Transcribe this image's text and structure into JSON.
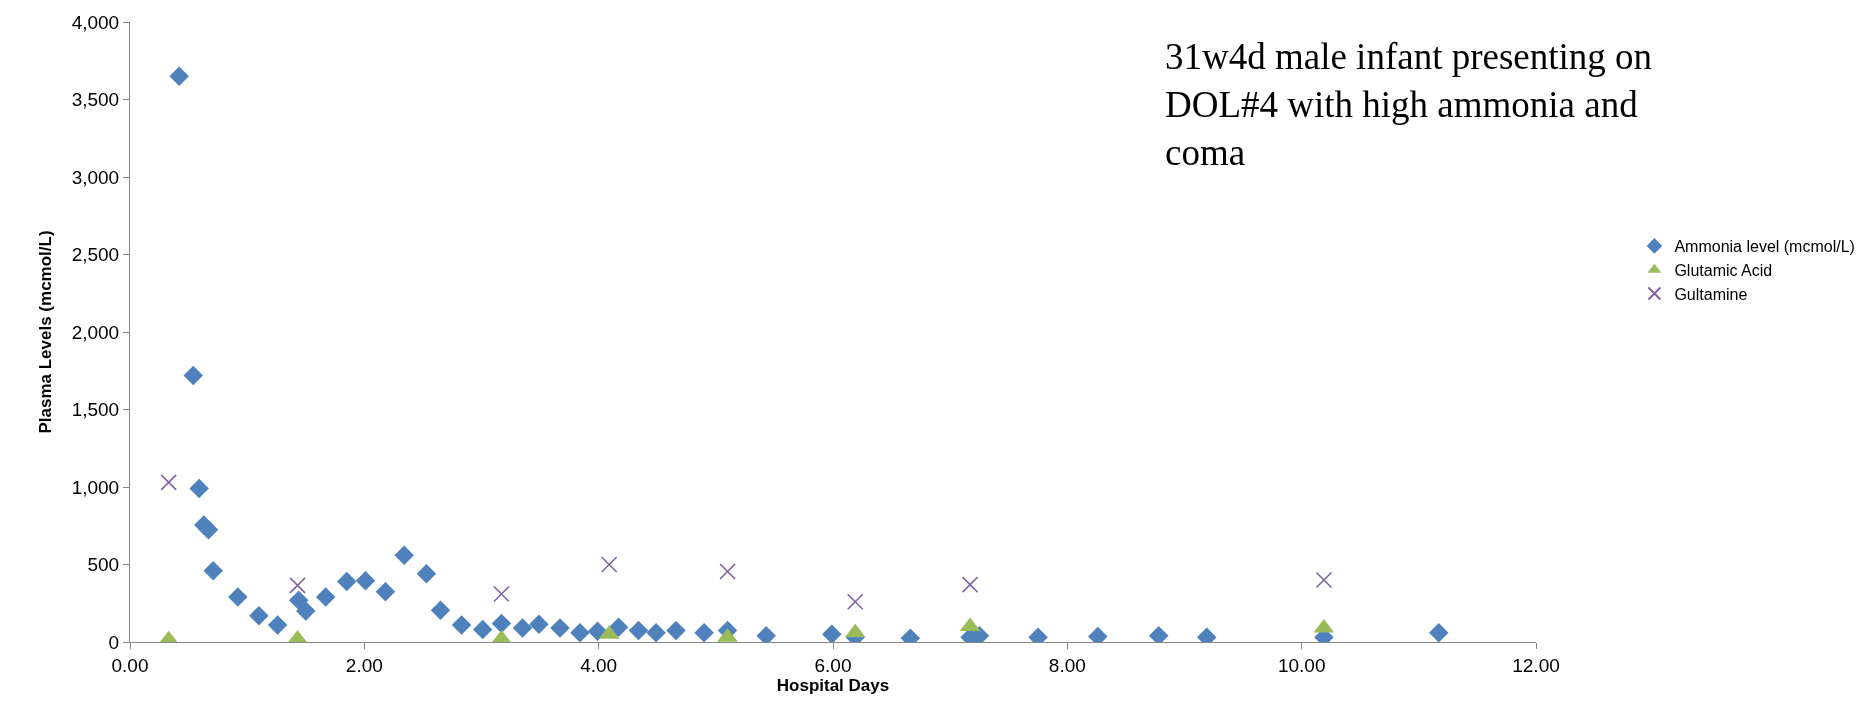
{
  "chart_data": {
    "type": "scatter",
    "title": "31w4d male infant presenting on DOL#4 with high ammonia and coma",
    "xlabel": "Hospital Days",
    "ylabel": "Plasma Levels (mcmol/L)",
    "series": [
      {
        "name": "Ammonia level (mcmol/L)",
        "color": "#4f81bd",
        "marker": "diamond",
        "x": [
          0.42,
          0.54,
          0.59,
          0.63,
          0.67,
          0.71,
          0.92,
          1.1,
          1.26,
          1.44,
          1.5,
          1.67,
          1.85,
          2.01,
          2.18,
          2.34,
          2.53,
          2.65,
          2.83,
          3.01,
          3.17,
          3.35,
          3.49,
          3.67,
          3.84,
          3.99,
          4.17,
          4.34,
          4.49,
          4.66,
          4.9,
          5.1,
          5.43,
          5.99,
          6.19,
          6.66,
          7.17,
          7.25,
          7.75,
          8.26,
          8.78,
          9.19,
          10.19,
          11.17
        ],
        "values": [
          3650,
          1720,
          990,
          755,
          725,
          460,
          290,
          170,
          110,
          270,
          200,
          290,
          390,
          395,
          325,
          560,
          440,
          205,
          110,
          80,
          120,
          90,
          115,
          90,
          60,
          70,
          95,
          75,
          60,
          75,
          60,
          75,
          40,
          50,
          30,
          25,
          30,
          40,
          30,
          35,
          40,
          30,
          30,
          60
        ]
      },
      {
        "name": "Glutamic Acid",
        "color": "#9bbb59",
        "marker": "triangle",
        "x": [
          0.33,
          1.43,
          3.17,
          4.09,
          5.1,
          6.19,
          7.17,
          10.19
        ],
        "values": [
          15,
          20,
          20,
          50,
          30,
          60,
          100,
          90
        ]
      },
      {
        "name": "Gultamine",
        "color": "#8064a2",
        "marker": "cross",
        "x": [
          0.33,
          1.43,
          3.17,
          4.09,
          5.1,
          6.19,
          7.17,
          10.19
        ],
        "values": [
          1030,
          365,
          310,
          500,
          455,
          260,
          370,
          400
        ]
      }
    ],
    "xlim": [
      0,
      12
    ],
    "xticks": [
      {
        "value": 0,
        "label": "0.00"
      },
      {
        "value": 2,
        "label": "2.00"
      },
      {
        "value": 4,
        "label": "4.00"
      },
      {
        "value": 6,
        "label": "6.00"
      },
      {
        "value": 8,
        "label": "8.00"
      },
      {
        "value": 10,
        "label": "10.00"
      },
      {
        "value": 12,
        "label": "12.00"
      }
    ],
    "ylim": [
      0,
      4000
    ],
    "yticks": [
      {
        "value": 0,
        "label": "0"
      },
      {
        "value": 500,
        "label": "500"
      },
      {
        "value": 1000,
        "label": "1,000"
      },
      {
        "value": 1500,
        "label": "1,500"
      },
      {
        "value": 2000,
        "label": "2,000"
      },
      {
        "value": 2500,
        "label": "2,500"
      },
      {
        "value": 3000,
        "label": "3,000"
      },
      {
        "value": 3500,
        "label": "3,500"
      },
      {
        "value": 4000,
        "label": "4,000"
      }
    ],
    "legend": "right"
  }
}
